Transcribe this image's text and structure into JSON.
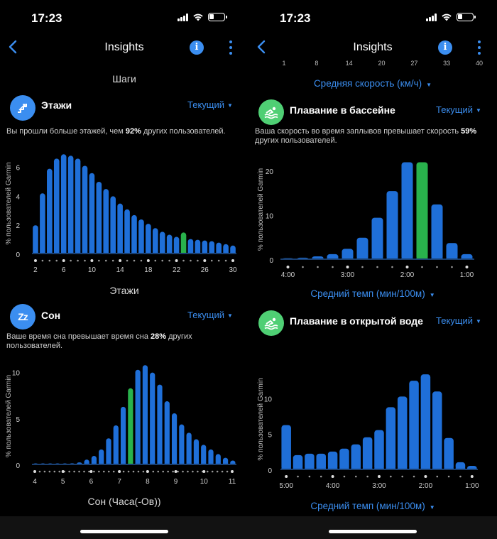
{
  "status": {
    "time": "17:23"
  },
  "nav": {
    "title": "Insights"
  },
  "left": {
    "prev_chart_xlabel": "Шаги",
    "floors": {
      "title": "Этажи",
      "period": "Текущий",
      "desc_prefix": "Вы прошли больше этажей, чем ",
      "desc_value": "92%",
      "desc_suffix": " других пользователей."
    },
    "floors_xlabel": "Этажи",
    "sleep": {
      "title": "Сон",
      "period": "Текущий",
      "desc_prefix": "Ваше время сна превышает время сна ",
      "desc_value": "28%",
      "desc_suffix": " других пользователей."
    },
    "sleep_xlabel": "Сон (Часа(-Ов))"
  },
  "right": {
    "prev_axis_ticks": [
      "1",
      "8",
      "14",
      "20",
      "27",
      "33",
      "40"
    ],
    "speed_label": "Средняя скорость (км/ч)",
    "pool": {
      "title": "Плавание в бассейне",
      "period": "Текущий",
      "desc_prefix": "Ваша скорость во время заплывов превышает скорость ",
      "desc_value": "59%",
      "desc_suffix": " других пользователей."
    },
    "pool_xlabel": "Средний темп (мин/100м)",
    "open": {
      "title": "Плавание в открытой воде",
      "period": "Текущий"
    },
    "open_xlabel": "Средний темп (мин/100м)"
  },
  "colors": {
    "bar": "#1f6fd8",
    "highlight": "#29b24c",
    "accent": "#3b8ef0",
    "swim_icon_bg": "#4fcf74"
  },
  "icons": {
    "floors": "stairs-icon",
    "sleep": "zz-icon",
    "swim": "swimmer-icon"
  },
  "chart_data": [
    {
      "id": "floors",
      "type": "bar",
      "title": "Этажи",
      "xlabel": "Этажи",
      "ylabel": "% пользователей Garmin",
      "ylim": [
        0,
        7.4
      ],
      "yticks": [
        0,
        2,
        4,
        6
      ],
      "categories": [
        2,
        3,
        4,
        5,
        6,
        7,
        8,
        9,
        10,
        11,
        12,
        13,
        14,
        15,
        16,
        17,
        18,
        19,
        20,
        21,
        22,
        23,
        24,
        25,
        26,
        27,
        28,
        29,
        30
      ],
      "xticks": [
        2,
        6,
        10,
        14,
        18,
        22,
        26,
        30
      ],
      "values": [
        2.0,
        4.2,
        5.9,
        6.6,
        6.9,
        6.8,
        6.6,
        6.1,
        5.6,
        5.0,
        4.5,
        4.0,
        3.5,
        3.1,
        2.7,
        2.4,
        2.1,
        1.8,
        1.55,
        1.35,
        1.2,
        1.5,
        1.05,
        1.0,
        0.95,
        0.9,
        0.8,
        0.7,
        0.6
      ],
      "highlight_index": 21
    },
    {
      "id": "sleep",
      "type": "bar",
      "title": "Сон",
      "xlabel": "Сон (Часа(-Ов))",
      "ylabel": "% пользователей Garmin",
      "ylim": [
        0,
        11.2
      ],
      "yticks": [
        0,
        5,
        10
      ],
      "xticks": [
        "4",
        "5",
        "6",
        "7",
        "8",
        "9",
        "10",
        "11"
      ],
      "values": [
        0.05,
        0.05,
        0.05,
        0.1,
        0.1,
        0.2,
        0.3,
        0.6,
        1.0,
        1.7,
        2.9,
        4.3,
        6.3,
        8.3,
        10.3,
        10.8,
        10.0,
        8.7,
        6.9,
        5.6,
        4.4,
        3.5,
        2.8,
        2.2,
        1.7,
        1.2,
        0.8,
        0.5
      ],
      "highlight_index": 13
    },
    {
      "id": "pool",
      "type": "bar",
      "title": "Плавание в бассейне",
      "xlabel": "Средний темп (мин/100м)",
      "ylabel": "% пользователей Garmin",
      "ylim": [
        0,
        24
      ],
      "yticks": [
        0,
        10,
        20
      ],
      "xticks": [
        "4:00",
        "3:00",
        "2:00",
        "1:00"
      ],
      "values": [
        0.3,
        0.5,
        0.8,
        1.3,
        2.5,
        5.0,
        9.5,
        15.5,
        22.0,
        22.0,
        12.5,
        3.8,
        1.3
      ],
      "highlight_index": 9
    },
    {
      "id": "open",
      "type": "bar",
      "title": "Плавание в открытой воде",
      "xlabel": "Средний темп (мин/100м)",
      "ylabel": "% пользователей Garmin",
      "ylim": [
        0,
        15
      ],
      "yticks": [
        0,
        5,
        10
      ],
      "xticks": [
        "5:00",
        "4:00",
        "3:00",
        "2:00",
        "1:00"
      ],
      "values": [
        6.3,
        2.1,
        2.3,
        2.3,
        2.6,
        3.0,
        3.6,
        4.6,
        5.6,
        8.8,
        10.3,
        12.5,
        13.4,
        11.0,
        4.5,
        1.1,
        0.6
      ]
    }
  ]
}
